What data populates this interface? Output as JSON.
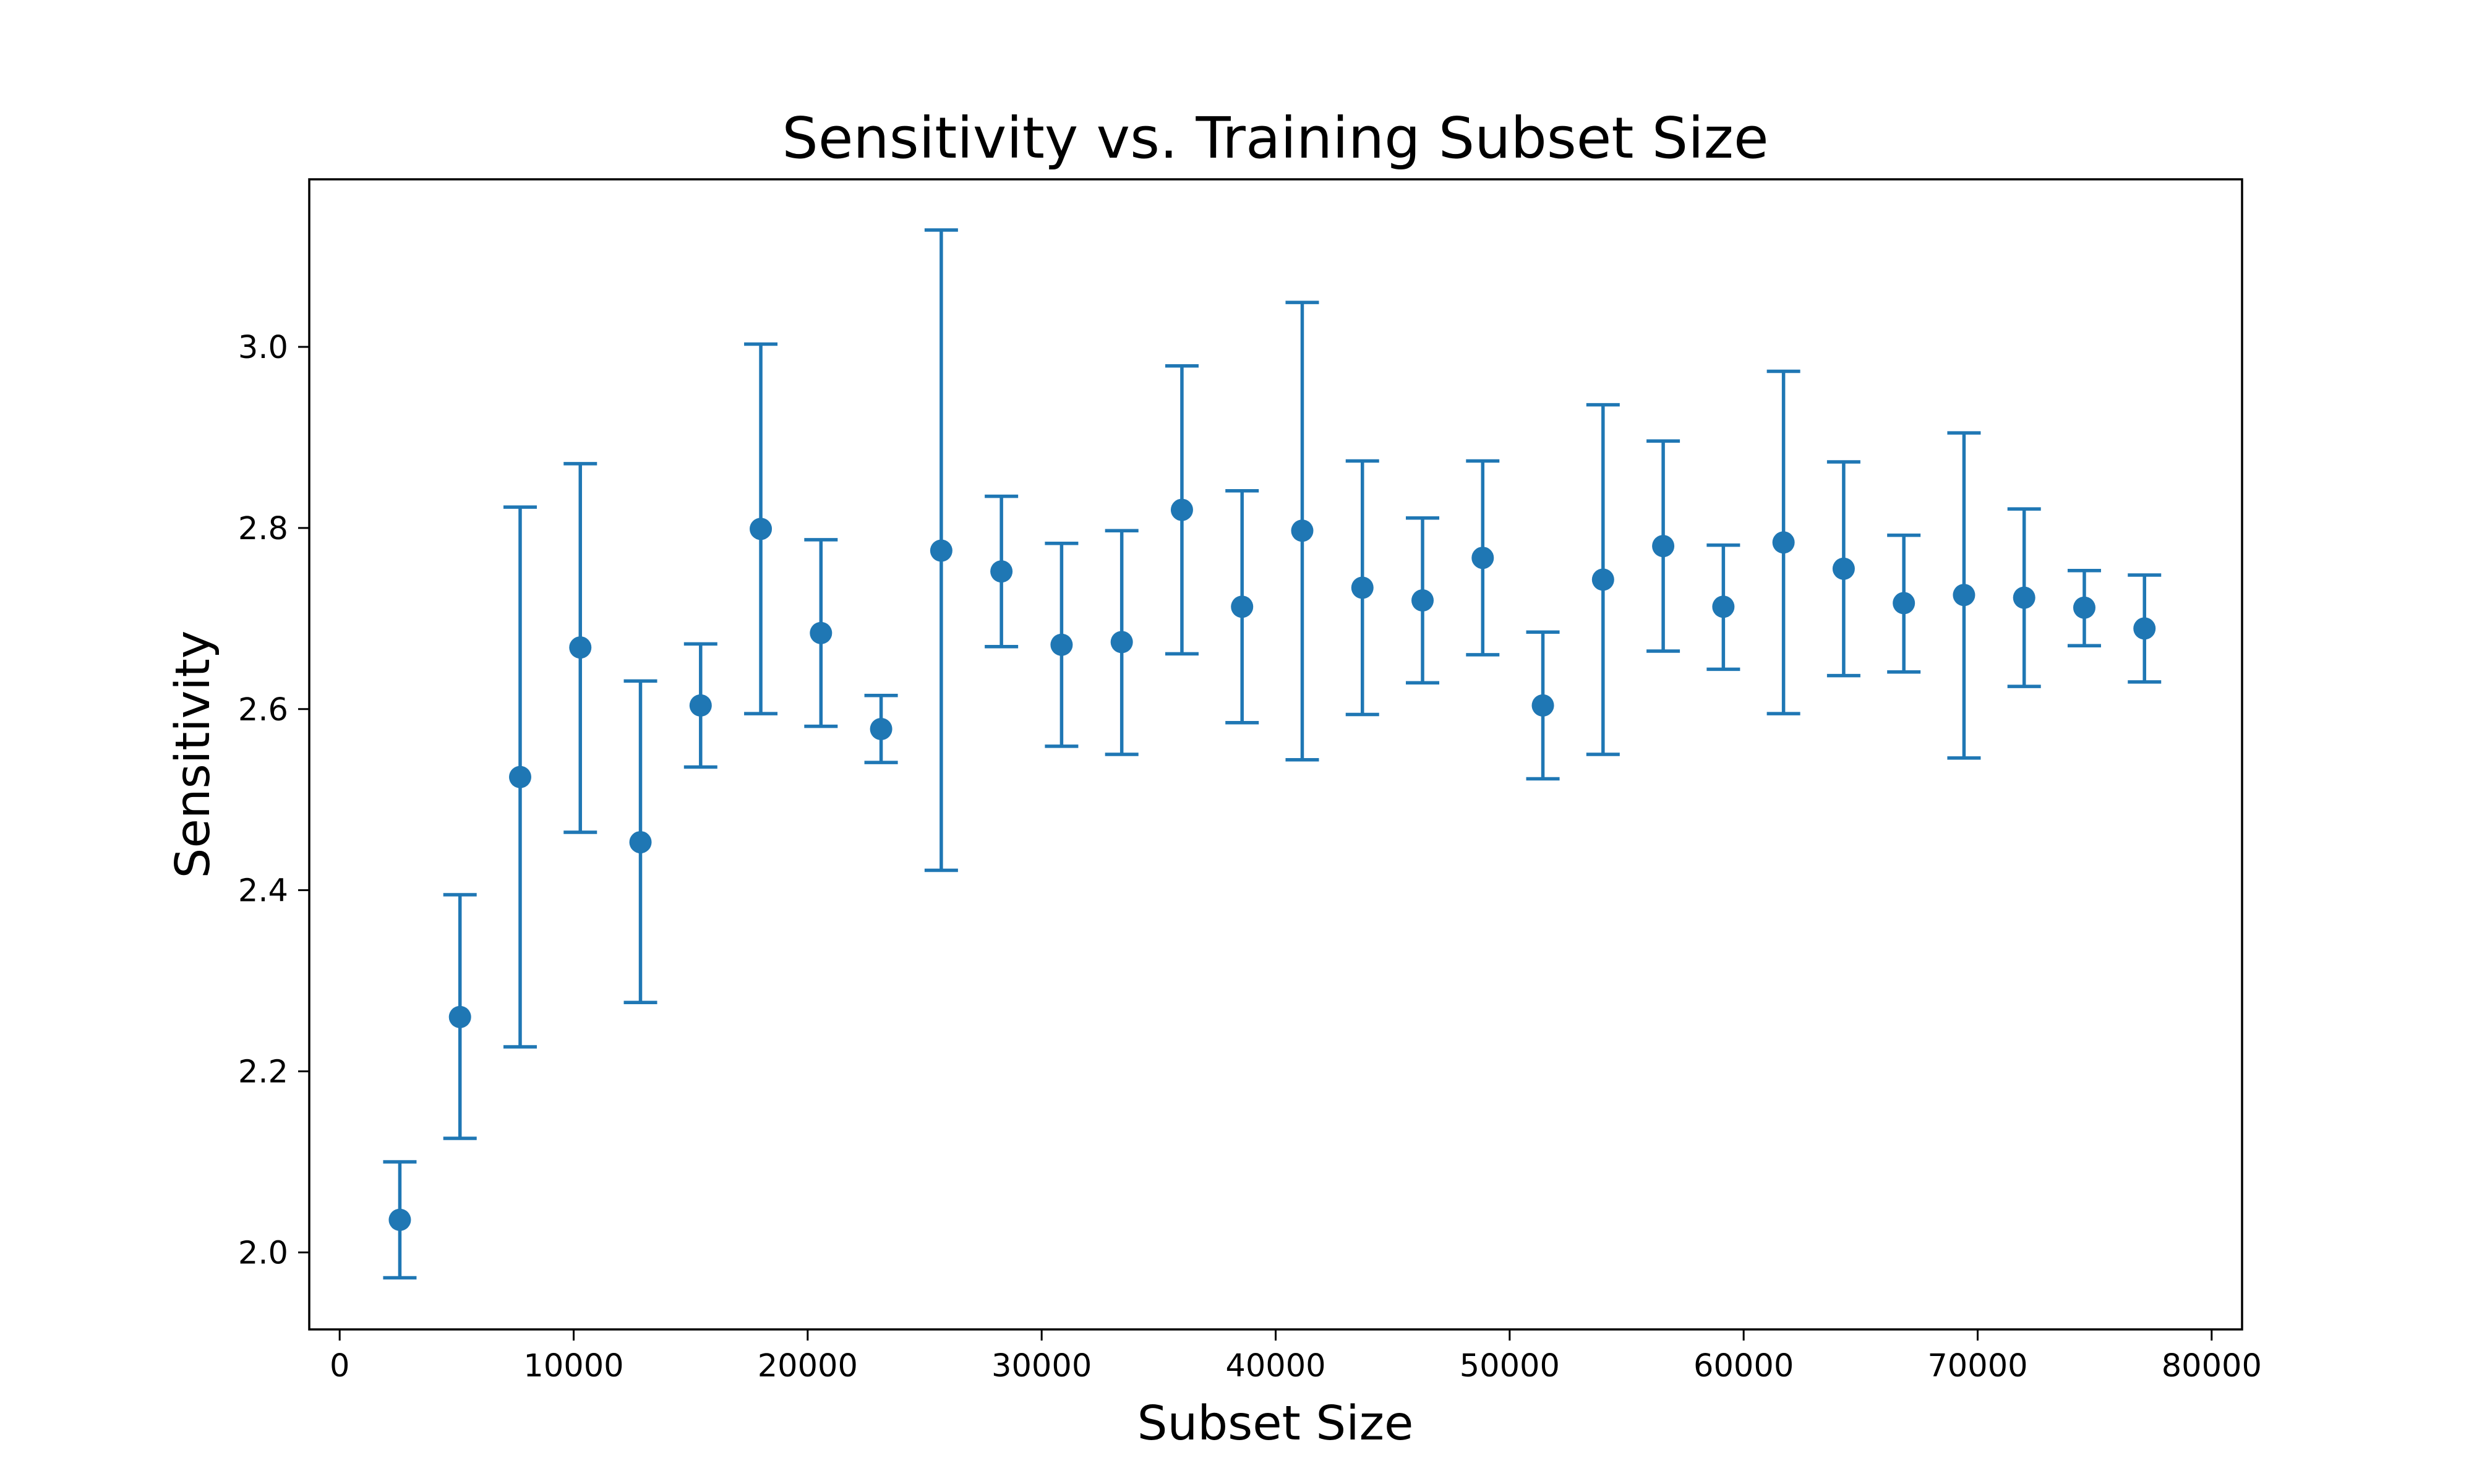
{
  "chart_data": {
    "type": "scatter",
    "title": "Sensitivity vs. Training Subset Size",
    "xlabel": "Subset Size",
    "ylabel": "Sensitivity",
    "xlim": [
      -1300,
      81300
    ],
    "ylim": [
      1.915,
      3.185
    ],
    "x_ticks": [
      0,
      10000,
      20000,
      30000,
      40000,
      50000,
      60000,
      70000,
      80000
    ],
    "y_ticks": [
      2.0,
      2.2,
      2.4,
      2.6,
      2.8,
      3.0
    ],
    "grid": false,
    "legend": "none",
    "series_color": "#1f77b4",
    "points": [
      {
        "x": 2571,
        "y": 2.036,
        "err_low": 1.972,
        "err_high": 2.1
      },
      {
        "x": 5142,
        "y": 2.26,
        "err_low": 2.126,
        "err_high": 2.395
      },
      {
        "x": 7713,
        "y": 2.525,
        "err_low": 2.227,
        "err_high": 2.823
      },
      {
        "x": 10284,
        "y": 2.668,
        "err_low": 2.464,
        "err_high": 2.871
      },
      {
        "x": 12855,
        "y": 2.453,
        "err_low": 2.276,
        "err_high": 2.631
      },
      {
        "x": 15426,
        "y": 2.604,
        "err_low": 2.536,
        "err_high": 2.672
      },
      {
        "x": 17997,
        "y": 2.799,
        "err_low": 2.595,
        "err_high": 3.003
      },
      {
        "x": 20568,
        "y": 2.684,
        "err_low": 2.581,
        "err_high": 2.787
      },
      {
        "x": 23139,
        "y": 2.578,
        "err_low": 2.541,
        "err_high": 2.615
      },
      {
        "x": 25710,
        "y": 2.775,
        "err_low": 2.422,
        "err_high": 3.129
      },
      {
        "x": 28281,
        "y": 2.752,
        "err_low": 2.669,
        "err_high": 2.835
      },
      {
        "x": 30852,
        "y": 2.671,
        "err_low": 2.559,
        "err_high": 2.783
      },
      {
        "x": 33423,
        "y": 2.674,
        "err_low": 2.55,
        "err_high": 2.797
      },
      {
        "x": 35994,
        "y": 2.82,
        "err_low": 2.661,
        "err_high": 2.979
      },
      {
        "x": 38565,
        "y": 2.713,
        "err_low": 2.585,
        "err_high": 2.841
      },
      {
        "x": 41136,
        "y": 2.797,
        "err_low": 2.544,
        "err_high": 3.049
      },
      {
        "x": 43707,
        "y": 2.734,
        "err_low": 2.594,
        "err_high": 2.874
      },
      {
        "x": 46278,
        "y": 2.72,
        "err_low": 2.629,
        "err_high": 2.811
      },
      {
        "x": 48849,
        "y": 2.767,
        "err_low": 2.66,
        "err_high": 2.874
      },
      {
        "x": 51420,
        "y": 2.604,
        "err_low": 2.523,
        "err_high": 2.685
      },
      {
        "x": 53991,
        "y": 2.743,
        "err_low": 2.55,
        "err_high": 2.936
      },
      {
        "x": 56562,
        "y": 2.78,
        "err_low": 2.664,
        "err_high": 2.896
      },
      {
        "x": 59133,
        "y": 2.713,
        "err_low": 2.644,
        "err_high": 2.781
      },
      {
        "x": 61704,
        "y": 2.784,
        "err_low": 2.595,
        "err_high": 2.973
      },
      {
        "x": 64275,
        "y": 2.755,
        "err_low": 2.637,
        "err_high": 2.873
      },
      {
        "x": 66846,
        "y": 2.717,
        "err_low": 2.641,
        "err_high": 2.792
      },
      {
        "x": 69417,
        "y": 2.726,
        "err_low": 2.546,
        "err_high": 2.905
      },
      {
        "x": 71988,
        "y": 2.723,
        "err_low": 2.625,
        "err_high": 2.821
      },
      {
        "x": 74559,
        "y": 2.712,
        "err_low": 2.67,
        "err_high": 2.753
      },
      {
        "x": 77130,
        "y": 2.689,
        "err_low": 2.63,
        "err_high": 2.748
      }
    ]
  }
}
